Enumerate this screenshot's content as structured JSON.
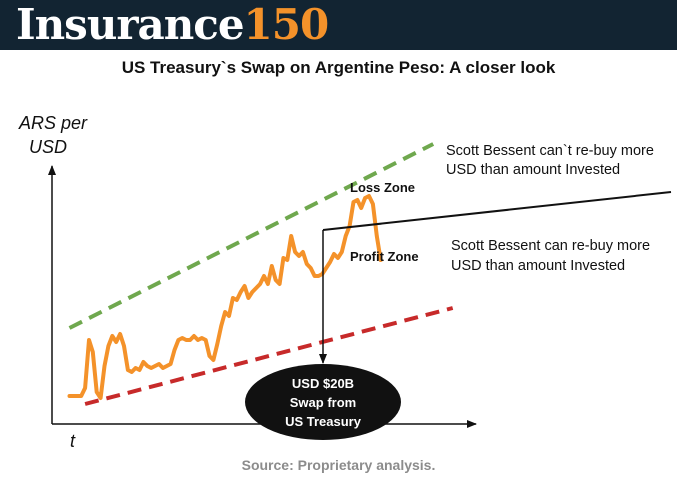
{
  "header": {
    "brand_word": "Insurance",
    "brand_number": "150",
    "background_color": "#122432",
    "brand_number_color": "#f4922a"
  },
  "title": "US Treasury`s Swap on Argentine Peso: A closer look",
  "chart_data": {
    "type": "line",
    "ylabel_line1": "ARS per",
    "ylabel_line2": "USD",
    "xlabel": "t",
    "grid": false,
    "ticks": false,
    "series": [
      {
        "color": "#f4922a",
        "points": [
          [
            0,
            0.0
          ],
          [
            3,
            0.0
          ],
          [
            6,
            0.0
          ],
          [
            8,
            0.04
          ],
          [
            10,
            0.28
          ],
          [
            12,
            0.22
          ],
          [
            14,
            0.02
          ],
          [
            16,
            -0.01
          ],
          [
            18,
            0.15
          ],
          [
            20,
            0.25
          ],
          [
            22,
            0.3
          ],
          [
            24,
            0.27
          ],
          [
            26,
            0.31
          ],
          [
            28,
            0.25
          ],
          [
            30,
            0.13
          ],
          [
            32,
            0.12
          ],
          [
            34,
            0.14
          ],
          [
            36,
            0.13
          ],
          [
            38,
            0.17
          ],
          [
            40,
            0.15
          ],
          [
            42,
            0.14
          ],
          [
            44,
            0.15
          ],
          [
            46,
            0.16
          ],
          [
            48,
            0.14
          ],
          [
            50,
            0.15
          ],
          [
            52,
            0.16
          ],
          [
            54,
            0.23
          ],
          [
            56,
            0.28
          ],
          [
            58,
            0.29
          ],
          [
            60,
            0.28
          ],
          [
            62,
            0.28
          ],
          [
            64,
            0.3
          ],
          [
            66,
            0.28
          ],
          [
            68,
            0.29
          ],
          [
            70,
            0.28
          ],
          [
            72,
            0.2
          ],
          [
            74,
            0.18
          ],
          [
            76,
            0.26
          ],
          [
            78,
            0.35
          ],
          [
            80,
            0.42
          ],
          [
            82,
            0.4
          ],
          [
            84,
            0.49
          ],
          [
            86,
            0.48
          ],
          [
            88,
            0.52
          ],
          [
            90,
            0.55
          ],
          [
            92,
            0.49
          ],
          [
            94,
            0.52
          ],
          [
            96,
            0.54
          ],
          [
            98,
            0.56
          ],
          [
            100,
            0.6
          ],
          [
            102,
            0.56
          ],
          [
            104,
            0.65
          ],
          [
            106,
            0.58
          ],
          [
            108,
            0.56
          ],
          [
            110,
            0.69
          ],
          [
            112,
            0.68
          ],
          [
            114,
            0.8
          ],
          [
            116,
            0.72
          ],
          [
            118,
            0.7
          ],
          [
            120,
            0.72
          ],
          [
            122,
            0.66
          ],
          [
            124,
            0.64
          ],
          [
            126,
            0.6
          ],
          [
            128,
            0.6
          ],
          [
            130,
            0.61
          ],
          [
            132,
            0.64
          ],
          [
            134,
            0.67
          ],
          [
            136,
            0.71
          ],
          [
            138,
            0.69
          ],
          [
            140,
            0.72
          ],
          [
            142,
            0.8
          ],
          [
            144,
            0.85
          ],
          [
            146,
            0.97
          ],
          [
            148,
            0.98
          ],
          [
            150,
            0.94
          ],
          [
            152,
            0.99
          ],
          [
            154,
            1.0
          ],
          [
            156,
            0.96
          ],
          [
            158,
            0.8
          ],
          [
            160,
            0.68
          ]
        ]
      },
      {
        "name": "upper bound",
        "color": "#6fa84e",
        "style": "dashed",
        "points": [
          [
            0,
            0.34
          ],
          [
            187,
            1.26
          ]
        ]
      },
      {
        "name": "lower bound",
        "color": "#c72a2a",
        "style": "dashed",
        "points": [
          [
            8,
            -0.04
          ],
          [
            197,
            0.44
          ]
        ]
      }
    ],
    "xlim": [
      -9,
      209
    ],
    "ylim": [
      -0.14,
      1.38
    ],
    "annotations": {
      "loss_zone": "Loss Zone",
      "profit_zone": "Profit Zone",
      "callout_top_line1": "Scott Bessent can`t re-buy more",
      "callout_top_line2": "USD than amount Invested",
      "callout_bottom_line1": "Scott Bessent can re-buy more",
      "callout_bottom_line2": "USD than amount Invested",
      "swap_line1": "USD $20B",
      "swap_line2": "Swap from",
      "swap_line3": "US Treasury"
    }
  },
  "source": "Source: Proprietary analysis."
}
